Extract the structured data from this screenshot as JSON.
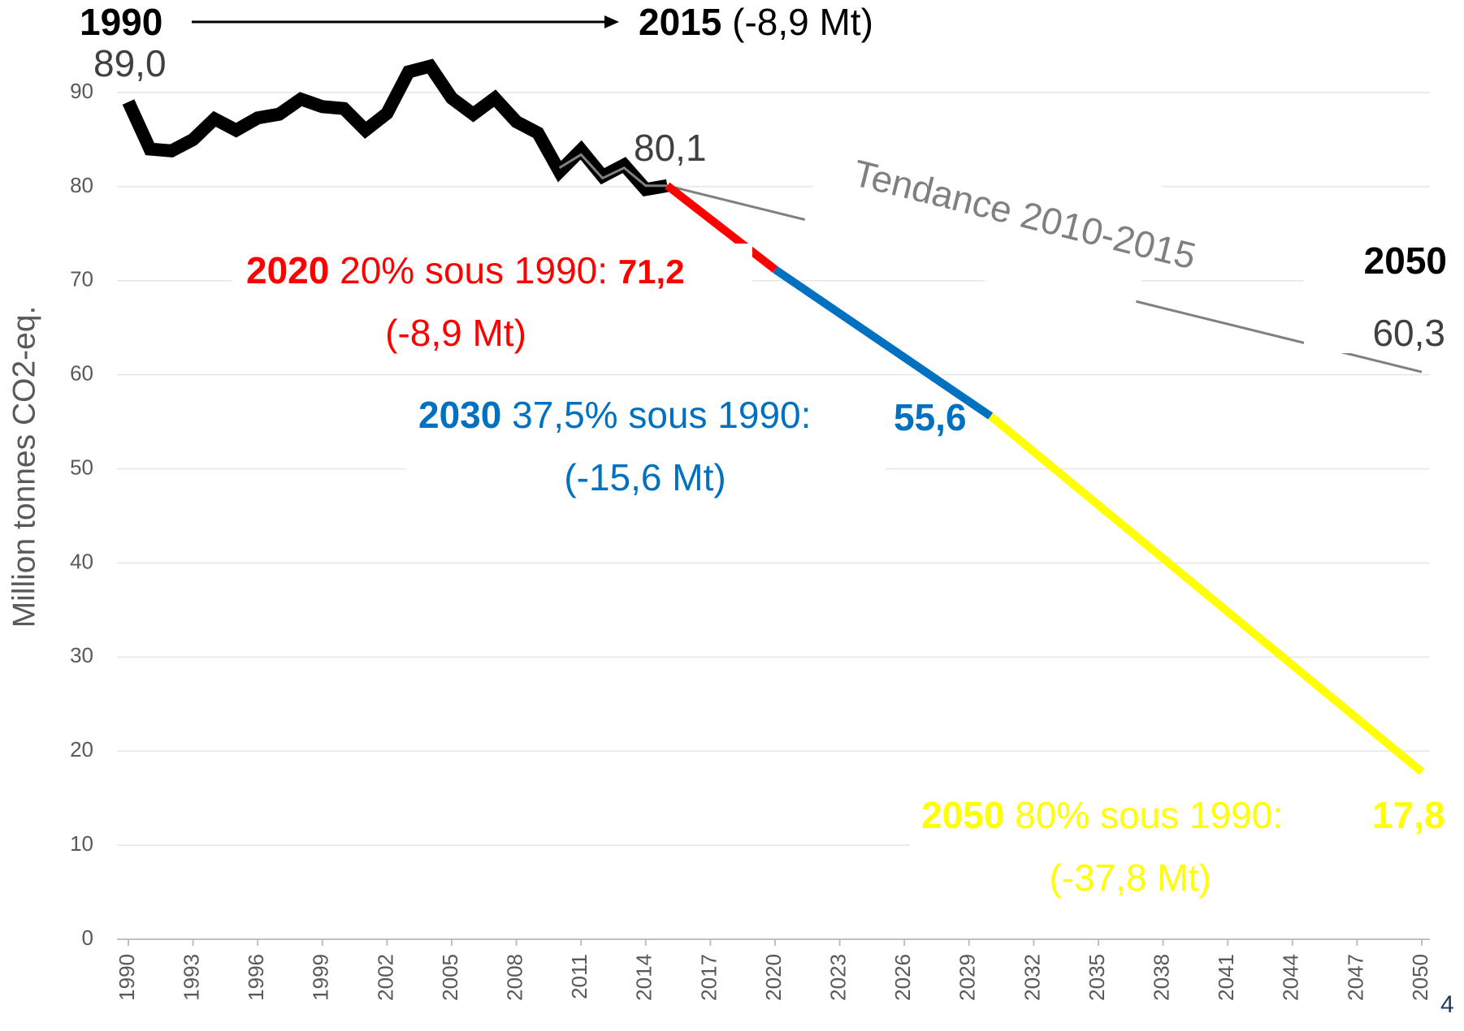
{
  "chart_data": {
    "type": "line",
    "y_axis_label": "Million tonnes CO2-eq.",
    "xlim": [
      1990,
      2050
    ],
    "xticks": [
      1990,
      1993,
      1996,
      1999,
      2002,
      2005,
      2008,
      2011,
      2014,
      2017,
      2020,
      2023,
      2026,
      2029,
      2032,
      2035,
      2038,
      2041,
      2044,
      2047,
      2050
    ],
    "ylim": [
      0,
      90
    ],
    "yticks": [
      0,
      10,
      20,
      30,
      40,
      50,
      60,
      70,
      80,
      90
    ],
    "grid": true,
    "series": [
      {
        "color": "#000000",
        "x": [
          1990,
          1991,
          1992,
          1993,
          1994,
          1995,
          1996,
          1997,
          1998,
          1999,
          2000,
          2001,
          2002,
          2003,
          2004,
          2005,
          2006,
          2007,
          2008,
          2009,
          2010,
          2011,
          2012,
          2013,
          2014,
          2015
        ],
        "values": [
          89.0,
          84.0,
          83.8,
          85.0,
          87.2,
          86.0,
          87.3,
          87.7,
          89.3,
          88.5,
          88.3,
          86.0,
          87.8,
          92.2,
          92.8,
          89.4,
          87.7,
          89.4,
          86.9,
          85.7,
          81.6,
          83.9,
          81.1,
          82.3,
          79.7,
          80.1
        ],
        "value_labels": [
          "89,0",
          null,
          null,
          null,
          null,
          null,
          null,
          null,
          null,
          null,
          null,
          null,
          null,
          null,
          null,
          null,
          null,
          null,
          null,
          null,
          null,
          null,
          null,
          null,
          null,
          "80,1"
        ]
      },
      {
        "name": "Tendance 2010-2015",
        "color": "#808080",
        "x": [
          2010,
          2011,
          2012,
          2013,
          2014,
          2015,
          2050
        ],
        "values": [
          82.0,
          83.4,
          80.9,
          82.0,
          80.1,
          80.1,
          60.3
        ],
        "value_labels": [
          null,
          null,
          null,
          null,
          null,
          null,
          "60,3"
        ]
      },
      {
        "color": "#ff0000",
        "x": [
          2015,
          2020
        ],
        "values": [
          80.1,
          71.2
        ],
        "value_labels": [
          null,
          "71,2"
        ]
      },
      {
        "color": "#0070c0",
        "x": [
          2020,
          2030
        ],
        "values": [
          71.2,
          55.6
        ],
        "value_labels": [
          null,
          "55,6"
        ]
      },
      {
        "color": "#ffff00",
        "x": [
          2030,
          2050
        ],
        "values": [
          55.6,
          17.8
        ],
        "value_labels": [
          null,
          "17,8"
        ]
      }
    ],
    "annotations": {
      "arrow_start": "1990",
      "arrow_end": "2015",
      "arrow_change": "(-8,9 Mt)",
      "trend_end_year": "2050",
      "target_2020": {
        "year": "2020",
        "text": "20% sous 1990:",
        "change": "(-8,9 Mt)"
      },
      "target_2030": {
        "year": "2030",
        "text": "37,5% sous 1990:",
        "change": "(-15,6 Mt)"
      },
      "target_2050": {
        "year": "2050",
        "text": "80% sous 1990:",
        "change": "(-37,8 Mt)"
      }
    },
    "page_number": "4"
  }
}
